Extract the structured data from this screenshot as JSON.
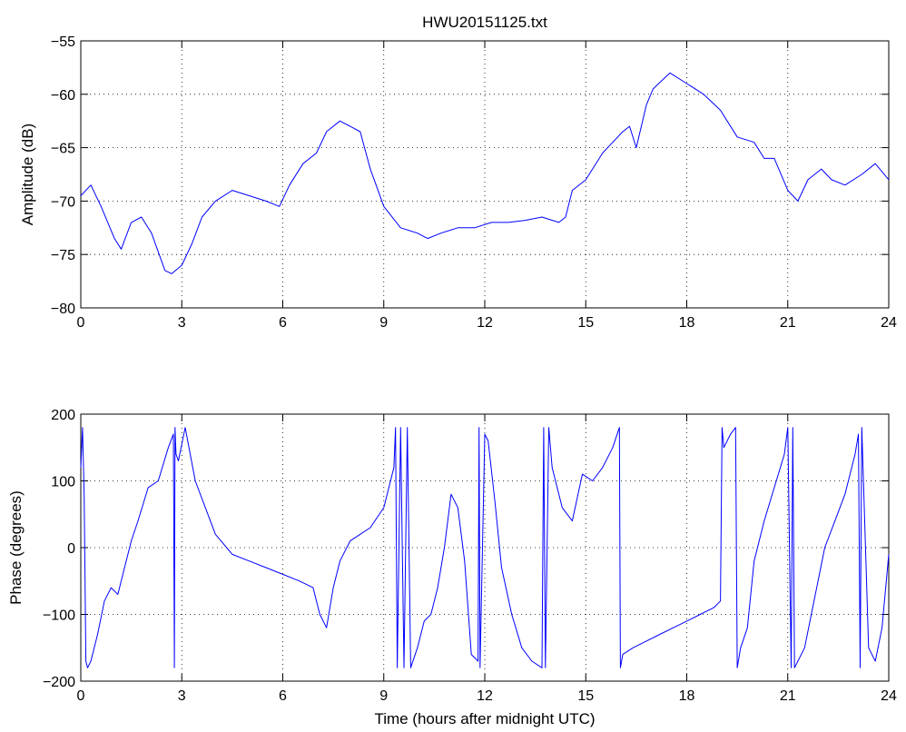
{
  "chart_data": [
    {
      "type": "line",
      "title": "HWU20151125.txt",
      "xlabel": "",
      "ylabel": "Amplitude (dB)",
      "xlim": [
        0,
        24
      ],
      "ylim": [
        -80,
        -55
      ],
      "xticks": [
        "0",
        "3",
        "6",
        "9",
        "12",
        "15",
        "18",
        "21",
        "24"
      ],
      "yticks": [
        "−55",
        "−60",
        "−65",
        "−70",
        "−75",
        "−80"
      ],
      "grid": true,
      "series": [
        {
          "color": "#0000ff",
          "x": [
            0,
            0.3,
            0.6,
            1.0,
            1.2,
            1.5,
            1.8,
            2.1,
            2.5,
            2.7,
            3.0,
            3.3,
            3.6,
            4.0,
            4.5,
            5.0,
            5.5,
            5.9,
            6.2,
            6.6,
            7.0,
            7.3,
            7.7,
            8.0,
            8.3,
            8.6,
            9.0,
            9.5,
            10.0,
            10.3,
            10.7,
            11.2,
            11.7,
            12.2,
            12.7,
            13.2,
            13.7,
            14.2,
            14.4,
            14.6,
            15.0,
            15.5,
            15.8,
            16.1,
            16.3,
            16.5,
            16.8,
            17.0,
            17.5,
            18.0,
            18.5,
            19.0,
            19.5,
            20.0,
            20.3,
            20.6,
            21.0,
            21.3,
            21.6,
            22.0,
            22.3,
            22.7,
            23.2,
            23.6,
            24.0
          ],
          "y": [
            -69.5,
            -68.5,
            -70.5,
            -73.5,
            -74.5,
            -72.0,
            -71.5,
            -73.0,
            -76.5,
            -76.8,
            -76.0,
            -74.0,
            -71.5,
            -70.0,
            -69.0,
            -69.5,
            -70.0,
            -70.5,
            -68.5,
            -66.5,
            -65.5,
            -63.5,
            -62.5,
            -63.0,
            -63.5,
            -67.0,
            -70.5,
            -72.5,
            -73.0,
            -73.5,
            -73.0,
            -72.5,
            -72.5,
            -72.0,
            -72.0,
            -71.8,
            -71.5,
            -72.0,
            -71.5,
            -69.0,
            -68.0,
            -65.5,
            -64.5,
            -63.5,
            -63.0,
            -65.0,
            -61.0,
            -59.5,
            -58.0,
            -59.0,
            -60.0,
            -61.5,
            -64.0,
            -64.5,
            -66.0,
            -66.0,
            -69.0,
            -70.0,
            -68.0,
            -67.0,
            -68.0,
            -68.5,
            -67.5,
            -66.5,
            -68.0
          ]
        }
      ]
    },
    {
      "type": "line",
      "title": "",
      "xlabel": "Time (hours after midnight UTC)",
      "ylabel": "Phase (degrees)",
      "xlim": [
        0,
        24
      ],
      "ylim": [
        -200,
        200
      ],
      "xticks": [
        "0",
        "3",
        "6",
        "9",
        "12",
        "15",
        "18",
        "21",
        "24"
      ],
      "yticks": [
        "200",
        "100",
        "0",
        "−100",
        "−200"
      ],
      "grid": true,
      "series": [
        {
          "color": "#0000ff",
          "x": [
            0,
            0.05,
            0.1,
            0.15,
            0.2,
            0.3,
            0.5,
            0.7,
            0.9,
            1.1,
            1.3,
            1.5,
            1.7,
            2.0,
            2.3,
            2.6,
            2.75,
            2.78,
            2.8,
            2.83,
            2.9,
            3.1,
            3.4,
            3.7,
            4.0,
            4.5,
            5.0,
            5.5,
            6.0,
            6.5,
            6.9,
            7.1,
            7.3,
            7.5,
            7.7,
            8.0,
            8.3,
            8.6,
            9.0,
            9.3,
            9.35,
            9.4,
            9.5,
            9.6,
            9.7,
            9.8,
            10.0,
            10.2,
            10.4,
            10.6,
            10.8,
            11.0,
            11.2,
            11.4,
            11.6,
            11.8,
            11.83,
            11.86,
            12.0,
            12.1,
            12.3,
            12.5,
            12.8,
            13.1,
            13.4,
            13.7,
            13.75,
            13.8,
            13.9,
            14.0,
            14.3,
            14.6,
            14.9,
            15.2,
            15.5,
            15.8,
            16.0,
            16.03,
            16.1,
            16.4,
            16.8,
            17.2,
            17.6,
            18.0,
            18.4,
            18.8,
            19.0,
            19.05,
            19.1,
            19.3,
            19.45,
            19.5,
            19.6,
            19.8,
            20.0,
            20.3,
            20.6,
            20.9,
            21.0,
            21.1,
            21.15,
            21.2,
            21.3,
            21.5,
            21.7,
            21.9,
            22.1,
            22.4,
            22.7,
            23.0,
            23.1,
            23.15,
            23.2,
            23.4,
            23.6,
            23.8,
            24.0
          ],
          "y": [
            120,
            180,
            80,
            -170,
            -180,
            -170,
            -130,
            -80,
            -60,
            -70,
            -30,
            10,
            40,
            90,
            100,
            150,
            170,
            -180,
            180,
            140,
            130,
            180,
            100,
            60,
            20,
            -10,
            -20,
            -30,
            -40,
            -50,
            -60,
            -100,
            -120,
            -60,
            -20,
            10,
            20,
            30,
            60,
            120,
            180,
            -180,
            180,
            -180,
            180,
            -180,
            -150,
            -110,
            -100,
            -60,
            0,
            80,
            60,
            -20,
            -160,
            -170,
            180,
            -180,
            170,
            160,
            70,
            -30,
            -100,
            -150,
            -170,
            -180,
            180,
            -180,
            180,
            120,
            60,
            40,
            110,
            100,
            120,
            150,
            180,
            -180,
            -160,
            -150,
            -140,
            -130,
            -120,
            -110,
            -100,
            -90,
            -80,
            180,
            150,
            170,
            180,
            -180,
            -150,
            -120,
            -20,
            40,
            90,
            140,
            180,
            -180,
            180,
            -180,
            -170,
            -150,
            -100,
            -50,
            0,
            40,
            80,
            140,
            170,
            -180,
            180,
            -150,
            -170,
            -120,
            -10
          ]
        }
      ]
    }
  ]
}
